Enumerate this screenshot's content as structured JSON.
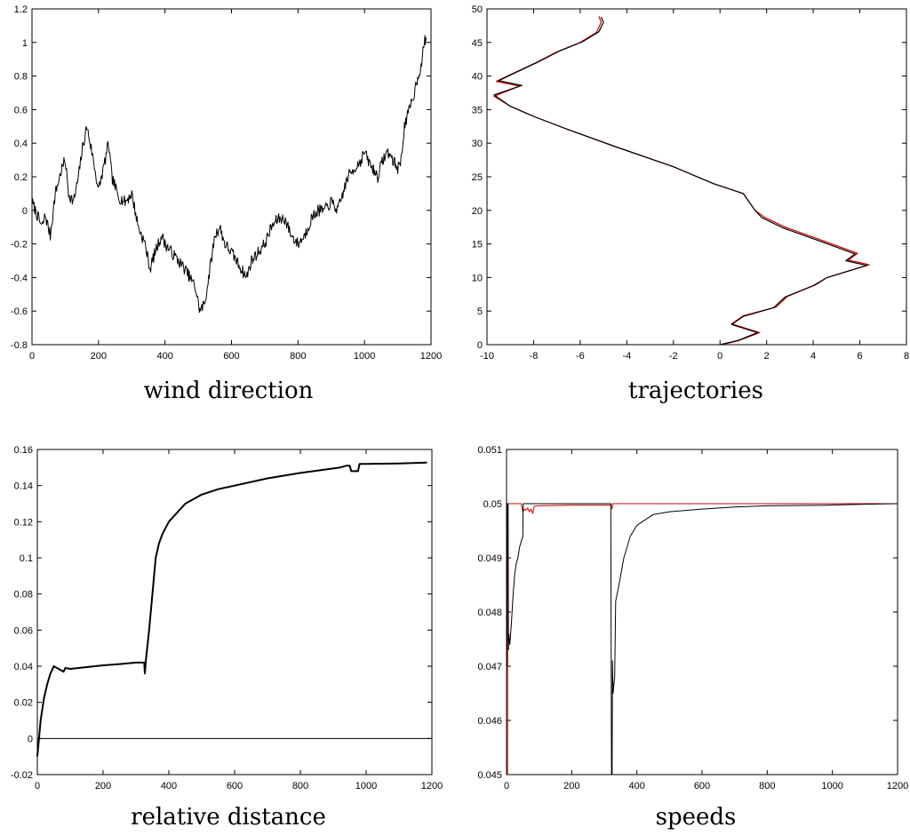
{
  "colors": {
    "background": "#ffffff",
    "primary_series": "#000000",
    "secondary_series": "#cc0000"
  },
  "chart_data": [
    {
      "type": "line",
      "caption": "wind direction",
      "xlim": [
        0,
        1200
      ],
      "ylim": [
        -0.8,
        1.2
      ],
      "xticks": [
        "0",
        "200",
        "400",
        "600",
        "800",
        "1000",
        "1200"
      ],
      "yticks": [
        "-0.8",
        "-0.6",
        "-0.4",
        "-0.2",
        "0",
        "0.2",
        "0.4",
        "0.6",
        "0.8",
        "1",
        "1.2"
      ],
      "series": [
        {
          "color": "#000000",
          "width": 1,
          "noise": 0.035,
          "seed": 7,
          "points": [
            [
              0,
              0.05
            ],
            [
              10,
              0.0
            ],
            [
              20,
              -0.05
            ],
            [
              30,
              -0.1
            ],
            [
              40,
              -0.03
            ],
            [
              55,
              -0.15
            ],
            [
              70,
              0.1
            ],
            [
              90,
              0.25
            ],
            [
              100,
              0.3
            ],
            [
              110,
              0.1
            ],
            [
              125,
              0.05
            ],
            [
              140,
              0.2
            ],
            [
              150,
              0.35
            ],
            [
              165,
              0.5
            ],
            [
              180,
              0.35
            ],
            [
              200,
              0.12
            ],
            [
              215,
              0.25
            ],
            [
              230,
              0.4
            ],
            [
              240,
              0.2
            ],
            [
              260,
              0.08
            ],
            [
              280,
              0.05
            ],
            [
              300,
              0.1
            ],
            [
              320,
              -0.1
            ],
            [
              340,
              -0.2
            ],
            [
              355,
              -0.35
            ],
            [
              370,
              -0.25
            ],
            [
              390,
              -0.15
            ],
            [
              400,
              -0.2
            ],
            [
              420,
              -0.25
            ],
            [
              440,
              -0.3
            ],
            [
              460,
              -0.35
            ],
            [
              475,
              -0.4
            ],
            [
              490,
              -0.45
            ],
            [
              505,
              -0.6
            ],
            [
              520,
              -0.55
            ],
            [
              535,
              -0.35
            ],
            [
              550,
              -0.15
            ],
            [
              565,
              -0.1
            ],
            [
              580,
              -0.2
            ],
            [
              600,
              -0.25
            ],
            [
              615,
              -0.3
            ],
            [
              630,
              -0.35
            ],
            [
              645,
              -0.4
            ],
            [
              660,
              -0.3
            ],
            [
              680,
              -0.25
            ],
            [
              700,
              -0.2
            ],
            [
              720,
              -0.1
            ],
            [
              740,
              -0.05
            ],
            [
              760,
              -0.05
            ],
            [
              780,
              -0.15
            ],
            [
              800,
              -0.2
            ],
            [
              820,
              -0.15
            ],
            [
              840,
              -0.05
            ],
            [
              860,
              0.0
            ],
            [
              880,
              0.0
            ],
            [
              900,
              0.05
            ],
            [
              920,
              0.0
            ],
            [
              935,
              0.1
            ],
            [
              950,
              0.2
            ],
            [
              970,
              0.25
            ],
            [
              990,
              0.3
            ],
            [
              1000,
              0.35
            ],
            [
              1010,
              0.3
            ],
            [
              1025,
              0.25
            ],
            [
              1040,
              0.2
            ],
            [
              1055,
              0.3
            ],
            [
              1070,
              0.35
            ],
            [
              1085,
              0.3
            ],
            [
              1100,
              0.25
            ],
            [
              1110,
              0.3
            ],
            [
              1120,
              0.5
            ],
            [
              1135,
              0.6
            ],
            [
              1150,
              0.7
            ],
            [
              1160,
              0.8
            ],
            [
              1170,
              0.85
            ],
            [
              1180,
              1.0
            ],
            [
              1185,
              1.03
            ]
          ]
        }
      ]
    },
    {
      "type": "line",
      "caption": "trajectories",
      "xlim": [
        -10,
        8
      ],
      "ylim": [
        0,
        50
      ],
      "xticks": [
        "-10",
        "-8",
        "-6",
        "-4",
        "-2",
        "0",
        "2",
        "4",
        "6",
        "8"
      ],
      "yticks": [
        "0",
        "5",
        "10",
        "15",
        "20",
        "25",
        "30",
        "35",
        "40",
        "45",
        "50"
      ],
      "series": [
        {
          "color": "#cc0000",
          "width": 1.2,
          "points": [
            [
              0.05,
              0
            ],
            [
              0.8,
              0.6
            ],
            [
              1.7,
              1.8
            ],
            [
              0.5,
              3.1
            ],
            [
              1.0,
              4.3
            ],
            [
              2.4,
              5.6
            ],
            [
              2.9,
              7.2
            ],
            [
              4.1,
              8.9
            ],
            [
              4.6,
              10.0
            ],
            [
              6.4,
              11.9
            ],
            [
              5.5,
              12.6
            ],
            [
              5.9,
              13.6
            ],
            [
              4.4,
              15.5
            ],
            [
              2.8,
              17.5
            ],
            [
              1.9,
              19.0
            ],
            [
              1.5,
              20.0
            ],
            [
              1.0,
              22.5
            ],
            [
              -0.3,
              24.0
            ],
            [
              -2.0,
              26.5
            ],
            [
              -4.5,
              29.5
            ],
            [
              -6.5,
              32.0
            ],
            [
              -8.0,
              34.0
            ],
            [
              -9.0,
              35.5
            ],
            [
              -9.7,
              37.0
            ],
            [
              -8.6,
              38.5
            ],
            [
              -9.6,
              39.2
            ],
            [
              -9.0,
              40.2
            ],
            [
              -7.9,
              42.0
            ],
            [
              -7.0,
              43.6
            ],
            [
              -6.0,
              45.0
            ],
            [
              -5.3,
              46.5
            ],
            [
              -5.1,
              48.0
            ],
            [
              -5.2,
              48.9
            ]
          ]
        },
        {
          "color": "#000000",
          "width": 1.2,
          "points": [
            [
              0.0,
              0
            ],
            [
              0.8,
              0.65
            ],
            [
              1.6,
              1.8
            ],
            [
              0.5,
              3.0
            ],
            [
              1.0,
              4.2
            ],
            [
              2.3,
              5.5
            ],
            [
              2.8,
              7.1
            ],
            [
              4.0,
              8.8
            ],
            [
              4.6,
              10.0
            ],
            [
              6.3,
              11.8
            ],
            [
              5.4,
              12.5
            ],
            [
              5.8,
              13.5
            ],
            [
              4.3,
              15.4
            ],
            [
              2.7,
              17.4
            ],
            [
              1.8,
              18.9
            ],
            [
              1.5,
              20.0
            ],
            [
              1.0,
              22.5
            ],
            [
              -0.3,
              24.0
            ],
            [
              -2.0,
              26.5
            ],
            [
              -4.5,
              29.5
            ],
            [
              -6.5,
              32.0
            ],
            [
              -8.0,
              34.0
            ],
            [
              -9.0,
              35.5
            ],
            [
              -9.7,
              37.2
            ],
            [
              -8.5,
              38.6
            ],
            [
              -9.5,
              39.3
            ],
            [
              -8.9,
              40.3
            ],
            [
              -7.8,
              42.1
            ],
            [
              -6.9,
              43.7
            ],
            [
              -5.9,
              45.1
            ],
            [
              -5.2,
              46.6
            ],
            [
              -5.0,
              48.0
            ],
            [
              -5.1,
              48.8
            ]
          ]
        }
      ]
    },
    {
      "type": "line",
      "caption": "relative distance",
      "xlim": [
        0,
        1200
      ],
      "ylim": [
        -0.02,
        0.16
      ],
      "xticks": [
        "0",
        "200",
        "400",
        "600",
        "800",
        "1000",
        "1200"
      ],
      "yticks": [
        "-0.02",
        "0",
        "0.02",
        "0.04",
        "0.06",
        "0.08",
        "0.1",
        "0.12",
        "0.14",
        "0.16"
      ],
      "hline": 0,
      "series": [
        {
          "color": "#000000",
          "width": 2,
          "points": [
            [
              0,
              -0.01
            ],
            [
              5,
              0.0
            ],
            [
              10,
              0.01
            ],
            [
              20,
              0.022
            ],
            [
              30,
              0.03
            ],
            [
              40,
              0.036
            ],
            [
              50,
              0.04
            ],
            [
              60,
              0.039
            ],
            [
              70,
              0.038
            ],
            [
              80,
              0.037
            ],
            [
              85,
              0.039
            ],
            [
              100,
              0.0385
            ],
            [
              150,
              0.0395
            ],
            [
              200,
              0.0405
            ],
            [
              250,
              0.0412
            ],
            [
              300,
              0.042
            ],
            [
              325,
              0.042
            ],
            [
              327,
              0.036
            ],
            [
              330,
              0.043
            ],
            [
              340,
              0.06
            ],
            [
              350,
              0.08
            ],
            [
              360,
              0.1
            ],
            [
              370,
              0.108
            ],
            [
              380,
              0.113
            ],
            [
              400,
              0.12
            ],
            [
              450,
              0.13
            ],
            [
              500,
              0.135
            ],
            [
              550,
              0.138
            ],
            [
              600,
              0.14
            ],
            [
              700,
              0.144
            ],
            [
              800,
              0.147
            ],
            [
              900,
              0.1495
            ],
            [
              920,
              0.15
            ],
            [
              940,
              0.151
            ],
            [
              950,
              0.151
            ],
            [
              955,
              0.148
            ],
            [
              975,
              0.148
            ],
            [
              980,
              0.152
            ],
            [
              1000,
              0.152
            ],
            [
              1100,
              0.1523
            ],
            [
              1185,
              0.1527
            ]
          ]
        }
      ]
    },
    {
      "type": "line",
      "caption": "speeds",
      "xlim": [
        0,
        1200
      ],
      "ylim": [
        0.045,
        0.051
      ],
      "xticks": [
        "0",
        "200",
        "400",
        "600",
        "800",
        "1000",
        "1200"
      ],
      "yticks": [
        "0.045",
        "0.046",
        "0.047",
        "0.048",
        "0.049",
        "0.05",
        "0.051"
      ],
      "series": [
        {
          "color": "#cc0000",
          "width": 1,
          "points": [
            [
              3,
              0.045
            ],
            [
              4,
              0.05
            ],
            [
              40,
              0.05
            ],
            [
              45,
              0.05
            ],
            [
              50,
              0.04985
            ],
            [
              55,
              0.0499
            ],
            [
              60,
              0.04988
            ],
            [
              65,
              0.04992
            ],
            [
              70,
              0.04985
            ],
            [
              75,
              0.0499
            ],
            [
              80,
              0.04982
            ],
            [
              85,
              0.04995
            ],
            [
              100,
              0.04996
            ],
            [
              200,
              0.04997
            ],
            [
              320,
              0.04997
            ],
            [
              323,
              0.04995
            ],
            [
              324,
              0.0499
            ],
            [
              325,
              0.05
            ],
            [
              1200,
              0.05
            ]
          ]
        },
        {
          "color": "#000000",
          "width": 1,
          "points": [
            [
              0,
              0.05
            ],
            [
              1,
              0.047
            ],
            [
              2,
              0.05
            ],
            [
              5,
              0.05
            ],
            [
              6,
              0.0473
            ],
            [
              7,
              0.0476
            ],
            [
              10,
              0.0474
            ],
            [
              15,
              0.0478
            ],
            [
              20,
              0.0483
            ],
            [
              25,
              0.0487
            ],
            [
              30,
              0.0489
            ],
            [
              35,
              0.049
            ],
            [
              40,
              0.0492
            ],
            [
              45,
              0.0493
            ],
            [
              50,
              0.0494
            ],
            [
              51,
              0.05
            ],
            [
              320,
              0.05
            ],
            [
              322,
              0.045
            ],
            [
              324,
              0.045
            ],
            [
              325,
              0.0471
            ],
            [
              327,
              0.0465
            ],
            [
              332,
              0.0468
            ],
            [
              335,
              0.0482
            ],
            [
              345,
              0.0485
            ],
            [
              360,
              0.049
            ],
            [
              380,
              0.0494
            ],
            [
              400,
              0.0496
            ],
            [
              450,
              0.0498
            ],
            [
              500,
              0.04985
            ],
            [
              600,
              0.0499
            ],
            [
              700,
              0.04994
            ],
            [
              800,
              0.04996
            ],
            [
              980,
              0.04997
            ],
            [
              1100,
              0.04999
            ],
            [
              1200,
              0.05
            ]
          ]
        }
      ]
    }
  ]
}
